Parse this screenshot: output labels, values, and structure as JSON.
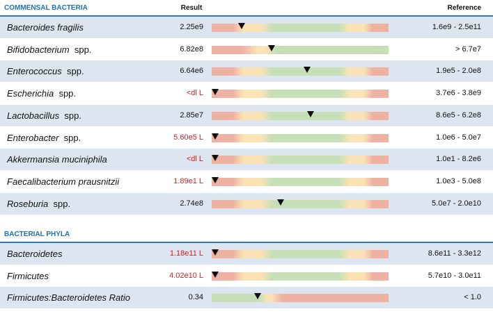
{
  "sections": [
    {
      "title": "COMMENSAL BACTERIA",
      "result_header": "Result",
      "reference_header": "Reference",
      "rows": [
        {
          "name": "Bacteroides fragilis",
          "suffix": "",
          "result": "2.25e9",
          "low": false,
          "reference": "1.6e9 - 2.5e11",
          "gauge": "red-yellow-green-yellow-red",
          "level": 0.17
        },
        {
          "name": "Bifidobacterium",
          "suffix": "spp.",
          "result": "6.82e8",
          "low": false,
          "reference": "> 6.7e7",
          "gauge": "red-yellow-green",
          "level": 0.34
        },
        {
          "name": "Enterococcus",
          "suffix": "spp.",
          "result": "6.64e6",
          "low": false,
          "reference": "1.9e5 - 2.0e8",
          "gauge": "red-yellow-green-yellow-red",
          "level": 0.54
        },
        {
          "name": "Escherichia",
          "suffix": "spp.",
          "result": "<dl L",
          "low": true,
          "reference": "3.7e6 - 3.8e9",
          "gauge": "red-yellow-green-yellow-red",
          "level": 0.02
        },
        {
          "name": "Lactobacillus",
          "suffix": "spp.",
          "result": "2.85e7",
          "low": false,
          "reference": "8.6e5 - 6.2e8",
          "gauge": "red-yellow-green-yellow-red",
          "level": 0.56
        },
        {
          "name": "Enterobacter",
          "suffix": "spp.",
          "result": "5.60e5 L",
          "low": true,
          "reference": "1.0e6 - 5.0e7",
          "gauge": "red-yellow-green-yellow-red",
          "level": 0.02
        },
        {
          "name": "Akkermansia muciniphila",
          "suffix": "",
          "result": "<dl L",
          "low": true,
          "reference": "1.0e1 - 8.2e6",
          "gauge": "red-yellow-green-yellow-red",
          "level": 0.02
        },
        {
          "name": "Faecalibacterium prausnitzii",
          "suffix": "",
          "result": "1.89e1 L",
          "low": true,
          "reference": "1.0e3 - 5.0e8",
          "gauge": "red-yellow-green-yellow-red",
          "level": 0.02
        },
        {
          "name": "Roseburia",
          "suffix": "spp.",
          "result": "2.74e8",
          "low": false,
          "reference": "5.0e7 - 2.0e10",
          "gauge": "red-yellow-green-yellow-red",
          "level": 0.39
        }
      ]
    },
    {
      "title": "BACTERIAL PHYLA",
      "result_header": "",
      "reference_header": "",
      "rows": [
        {
          "name": "Bacteroidetes",
          "suffix": "",
          "result": "1.18e11 L",
          "low": true,
          "reference": "8.6e11 - 3.3e12",
          "gauge": "red-yellow-green-yellow-red",
          "level": 0.02
        },
        {
          "name": "Firmicutes",
          "suffix": "",
          "result": "4.02e10 L",
          "low": true,
          "reference": "5.7e10 - 3.0e11",
          "gauge": "red-yellow-green-yellow-red",
          "level": 0.02
        },
        {
          "name": "Firmicutes:Bacteroidetes Ratio",
          "suffix": "",
          "result": "0.34",
          "low": false,
          "reference": "< 1.0",
          "gauge": "green-yellow-red",
          "level": 0.26
        }
      ]
    }
  ],
  "colors": {
    "accent": "#2e7ab8",
    "section_title": "#1f6fb2",
    "low_result": "#d11f1f",
    "row_stripe": "#dde5f1",
    "gauge_red": "#eeb2a3",
    "gauge_yellow": "#fbe3b6",
    "gauge_green": "#c6dfb6"
  }
}
